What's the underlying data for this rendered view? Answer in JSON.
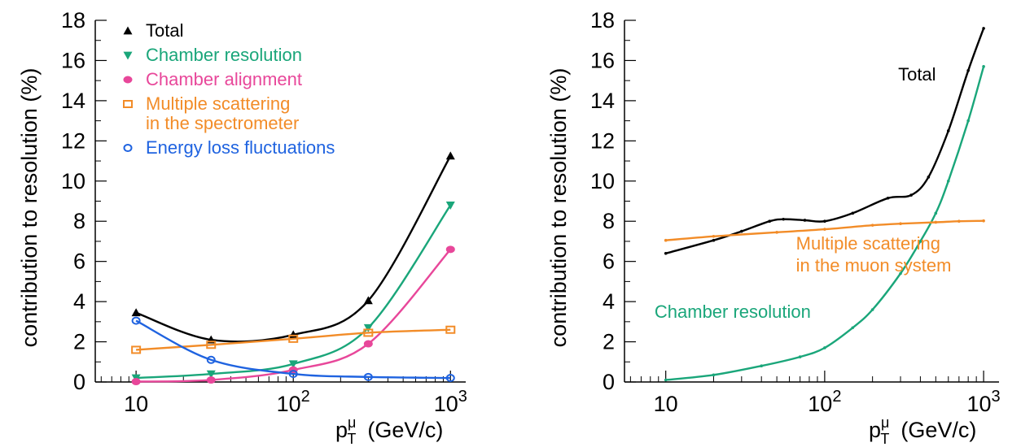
{
  "chart_data": [
    {
      "type": "line",
      "x_scale": "log",
      "xlim": [
        5.5,
        1250
      ],
      "ylim": [
        0,
        18
      ],
      "x_ticklabels": [
        {
          "value": 10,
          "base": "10",
          "exp": ""
        },
        {
          "value": 100,
          "base": "10",
          "exp": "2"
        },
        {
          "value": 1000,
          "base": "10",
          "exp": "3"
        }
      ],
      "y_ticks": [
        0,
        2,
        4,
        6,
        8,
        10,
        12,
        14,
        16,
        18
      ],
      "xlabel": {
        "main": "p",
        "sup": "μ",
        "sub": "T",
        "unit": "(GeV/c)"
      },
      "ylabel": "contribution to resolution (%)",
      "grid": false,
      "legend_position": "top-left",
      "series": [
        {
          "name": "Total",
          "color": "#000000",
          "marker": "triangle-up",
          "x": [
            10,
            30,
            100,
            300,
            1000
          ],
          "y": [
            3.45,
            2.1,
            2.35,
            4.05,
            11.25
          ]
        },
        {
          "name": "Chamber resolution",
          "color": "#1aa67a",
          "marker": "triangle-down",
          "x": [
            10,
            30,
            100,
            300,
            1000
          ],
          "y": [
            0.2,
            0.4,
            0.9,
            2.7,
            8.8
          ]
        },
        {
          "name": "Chamber alignment",
          "color": "#e8479a",
          "marker": "circle-filled",
          "x": [
            10,
            30,
            100,
            300,
            1000
          ],
          "y": [
            0.02,
            0.1,
            0.6,
            1.9,
            6.6
          ]
        },
        {
          "name": "Multiple scattering\nin the spectrometer",
          "color": "#f28c28",
          "marker": "square-open",
          "x": [
            10,
            30,
            100,
            300,
            1000
          ],
          "y": [
            1.6,
            1.85,
            2.15,
            2.45,
            2.6
          ]
        },
        {
          "name": "Energy loss fluctuations",
          "color": "#1f63e0",
          "marker": "circle-open",
          "x": [
            10,
            30,
            100,
            300,
            1000
          ],
          "y": [
            3.05,
            1.1,
            0.4,
            0.25,
            0.2
          ]
        }
      ]
    },
    {
      "type": "line",
      "x_scale": "log",
      "xlim": [
        5.5,
        1250
      ],
      "ylim": [
        0,
        18
      ],
      "x_ticklabels": [
        {
          "value": 10,
          "base": "10",
          "exp": ""
        },
        {
          "value": 100,
          "base": "10",
          "exp": "2"
        },
        {
          "value": 1000,
          "base": "10",
          "exp": "3"
        }
      ],
      "y_ticks": [
        0,
        2,
        4,
        6,
        8,
        10,
        12,
        14,
        16,
        18
      ],
      "xlabel": {
        "main": "p",
        "sup": "μ",
        "sub": "T",
        "unit": "(GeV/c)"
      },
      "ylabel": "contribution to resolution (%)",
      "grid": false,
      "series": [
        {
          "name": "Total",
          "color": "#000000",
          "x": [
            10,
            20,
            30,
            45,
            55,
            75,
            100,
            150,
            250,
            350,
            450,
            600,
            800,
            1000
          ],
          "y": [
            6.4,
            7.05,
            7.5,
            8.0,
            8.1,
            8.05,
            8.0,
            8.4,
            9.15,
            9.3,
            10.2,
            12.5,
            15.5,
            17.6
          ],
          "label_position": [
            1000,
            15.0
          ]
        },
        {
          "name": "Chamber resolution",
          "color": "#1aa67a",
          "x": [
            10,
            20,
            40,
            70,
            100,
            150,
            200,
            300,
            400,
            500,
            600,
            800,
            1000
          ],
          "y": [
            0.1,
            0.35,
            0.8,
            1.25,
            1.7,
            2.7,
            3.6,
            5.4,
            7.0,
            8.4,
            10.0,
            13.0,
            15.7
          ],
          "label_position": [
            8.5,
            3.2
          ]
        },
        {
          "name": "Multiple scattering\nin the muon system",
          "color": "#f28c28",
          "x": [
            10,
            20,
            50,
            100,
            200,
            300,
            500,
            700,
            1000
          ],
          "y": [
            7.05,
            7.25,
            7.45,
            7.6,
            7.8,
            7.88,
            7.95,
            8.0,
            8.02
          ],
          "label_position": [
            66,
            6.6
          ]
        }
      ]
    }
  ]
}
